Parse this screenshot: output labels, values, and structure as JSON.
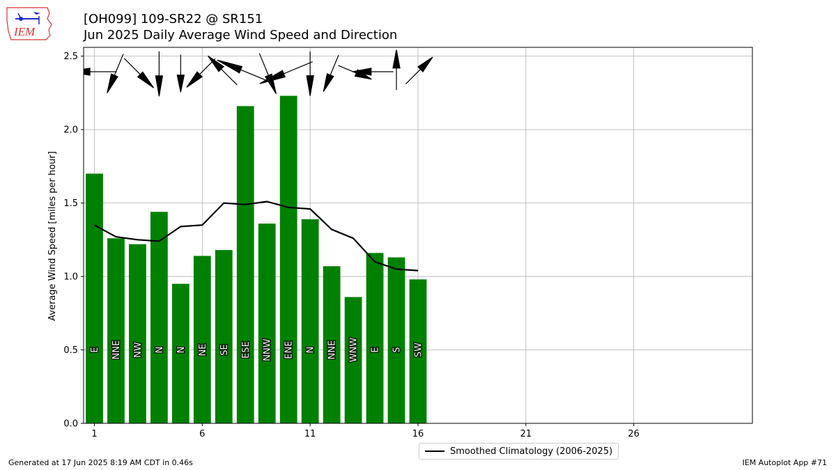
{
  "header": {
    "title": "[OH099] 109-SR22 @ SR151",
    "subtitle": "Jun 2025 Daily Average Wind Speed and Direction"
  },
  "logo": {
    "text": "IEM"
  },
  "footer": {
    "left": "Generated at 17 Jun 2025 8:19 AM CDT in 0.46s",
    "right": "IEM Autoplot App #71"
  },
  "legend": {
    "label": "Smoothed Climatology (2006-2025)"
  },
  "colors": {
    "bar": "#008000",
    "climatology": "#000000",
    "grid": "#b0b0b0"
  },
  "chart_data": {
    "type": "bar",
    "title": "Jun 2025 Daily Average Wind Speed and Direction",
    "ylabel": "Average Wind Speed [miles per hour]",
    "xlabel": "",
    "xlim": [
      0.5,
      31.5
    ],
    "ylim": [
      0,
      2.56
    ],
    "xticks": [
      1,
      6,
      11,
      16,
      21,
      26
    ],
    "yticks": [
      0.0,
      0.5,
      1.0,
      1.5,
      2.0,
      2.5
    ],
    "grid": true,
    "legend_position": "bottom-center",
    "days": [
      1,
      2,
      3,
      4,
      5,
      6,
      7,
      8,
      9,
      10,
      11,
      12,
      13,
      14,
      15,
      16
    ],
    "values": [
      1.7,
      1.26,
      1.22,
      1.44,
      0.95,
      1.14,
      1.18,
      2.16,
      1.36,
      2.23,
      1.39,
      1.07,
      0.86,
      1.16,
      1.13,
      0.98
    ],
    "directions": [
      "E",
      "NNE",
      "NW",
      "N",
      "N",
      "NE",
      "SE",
      "ESE",
      "NNW",
      "ENE",
      "N",
      "NNE",
      "WNW",
      "E",
      "S",
      "SW"
    ],
    "series": [
      {
        "name": "Smoothed Climatology (2006-2025)",
        "type": "line",
        "x": [
          1,
          2,
          3,
          4,
          5,
          6,
          7,
          8,
          9,
          10,
          11,
          12,
          13,
          14,
          15,
          16
        ],
        "values": [
          1.35,
          1.27,
          1.25,
          1.24,
          1.34,
          1.35,
          1.5,
          1.49,
          1.51,
          1.47,
          1.46,
          1.32,
          1.26,
          1.1,
          1.05,
          1.04
        ]
      }
    ]
  }
}
